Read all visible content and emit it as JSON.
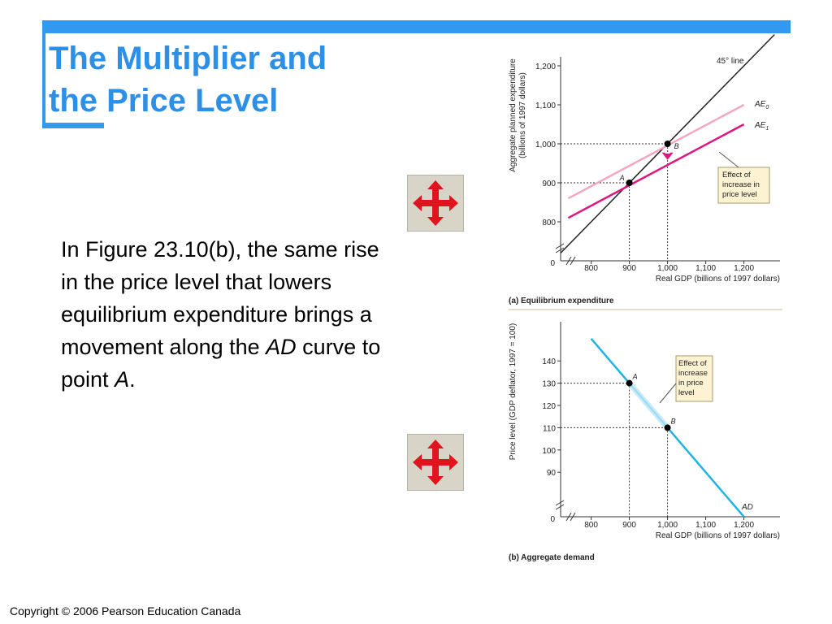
{
  "slide": {
    "title_lines": [
      "The Multiplier and",
      "the Price Level"
    ],
    "body": {
      "prefix": "In Figure 23.10(b), the same rise in the price level that lowers equilibrium expenditure brings a movement along the ",
      "italic_ad": "AD",
      "middle": " curve to point ",
      "italic_a": "A",
      "suffix": "."
    },
    "copyright": "Copyright © 2006 Pearson Education Canada",
    "move_buttons": [
      {
        "icon": "move-arrows-icon"
      },
      {
        "icon": "move-arrows-icon"
      }
    ],
    "colors": {
      "accent": "#3399ee",
      "title": "#2e8fe6",
      "ae0": "#f4a6c4",
      "ae1": "#e0167e",
      "ad": "#22b2e6",
      "guide": "#333333"
    }
  },
  "chart_data": [
    {
      "type": "line",
      "panel_label": "(a) Equilibrium expenditure",
      "xlabel": "Real GDP (billions of 1997 dollars)",
      "ylabel_lines": [
        "Aggregate planned expenditure",
        "(billions of 1997 dollars)"
      ],
      "x_ticks": [
        "800",
        "900",
        "1,000",
        "1,100",
        "1,200"
      ],
      "x_tick_values": [
        800,
        900,
        1000,
        1100,
        1200
      ],
      "y_ticks": [
        "800",
        "900",
        "1,000",
        "1,100",
        "1,200"
      ],
      "y_tick_values": [
        800,
        900,
        1000,
        1100,
        1200
      ],
      "origin_label": "0",
      "xlim": [
        720,
        1280
      ],
      "ylim": [
        700,
        1220
      ],
      "series": [
        {
          "name": "45° line",
          "x": [
            720,
            1280
          ],
          "y": [
            720,
            1280
          ]
        },
        {
          "name": "AE0",
          "label_main": "AE",
          "label_sub": "0",
          "x": [
            740,
            1200
          ],
          "y": [
            860,
            1100
          ]
        },
        {
          "name": "AE1",
          "label_main": "AE",
          "label_sub": "1",
          "x": [
            740,
            1200
          ],
          "y": [
            810,
            1050
          ]
        }
      ],
      "points": [
        {
          "label": "A",
          "x": 900,
          "y": 900
        },
        {
          "label": "B",
          "x": 1000,
          "y": 1000
        }
      ],
      "annotation": {
        "lines": [
          "Effect of",
          "increase in",
          "price level"
        ]
      }
    },
    {
      "type": "line",
      "panel_label": "(b) Aggregate demand",
      "xlabel": "Real GDP (billions of 1997 dollars)",
      "ylabel": "Price level (GDP deflator, 1997 = 100)",
      "x_ticks": [
        "800",
        "900",
        "1,000",
        "1,100",
        "1,200"
      ],
      "x_tick_values": [
        800,
        900,
        1000,
        1100,
        1200
      ],
      "y_ticks": [
        "90",
        "100",
        "110",
        "120",
        "130",
        "140"
      ],
      "y_tick_values": [
        90,
        100,
        110,
        120,
        130,
        140
      ],
      "origin_label": "0",
      "xlim": [
        720,
        1280
      ],
      "ylim": [
        70,
        152
      ],
      "series": [
        {
          "name": "AD",
          "x": [
            800,
            1200
          ],
          "y": [
            150,
            70
          ]
        }
      ],
      "points": [
        {
          "label": "A",
          "x": 900,
          "y": 130
        },
        {
          "label": "B",
          "x": 1000,
          "y": 110
        }
      ],
      "annotation": {
        "lines": [
          "Effect of",
          "increase",
          "in price",
          "level"
        ]
      }
    }
  ]
}
